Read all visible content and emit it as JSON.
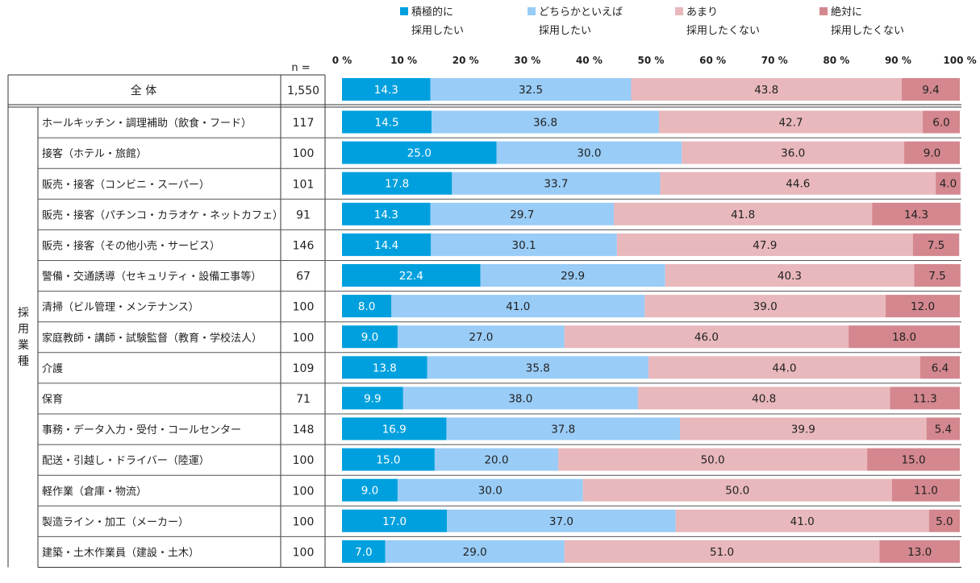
{
  "chart_data": {
    "type": "bar",
    "orientation": "horizontal",
    "stacked": true,
    "percent_stacked": true,
    "n_header": "n =",
    "xlim": [
      0,
      100
    ],
    "x_ticks": [
      "0 %",
      "10 %",
      "20 %",
      "30 %",
      "40 %",
      "50 %",
      "60 %",
      "70 %",
      "80 %",
      "90 %",
      "100 %"
    ],
    "legend": {
      "placement": "top",
      "entries": [
        {
          "line1": "積極的に",
          "line2": "採用したい"
        },
        {
          "line1": "どちらかといえば",
          "line2": "採用したい"
        },
        {
          "line1": "あまり",
          "line2": "採用したくない"
        },
        {
          "line1": "絶対に",
          "line2": "採用したくない"
        }
      ]
    },
    "colors": [
      "#00A0DE",
      "#99CCF7",
      "#E8B8BC",
      "#D4878E"
    ],
    "group_label": "採用業種",
    "total": {
      "category": "全 体",
      "n": "1,550",
      "values": [
        14.3,
        32.5,
        43.8,
        9.4
      ]
    },
    "categories": [
      "ホールキッチン・調理補助（飲食・フード）",
      "接客（ホテル・旅館）",
      "販売・接客（コンビニ・スーパー）",
      "販売・接客（パチンコ・カラオケ・ネットカフェ）",
      "販売・接客（その他小売・サービス）",
      "警備・交通誘導（セキュリティ・設備工事等）",
      "清掃（ビル管理・メンテナンス）",
      "家庭教師・講師・試験監督（教育・学校法人）",
      "介護",
      "保育",
      "事務・データ入力・受付・コールセンター",
      "配送・引越し・ドライバー（陸運）",
      "軽作業（倉庫・物流）",
      "製造ライン・加工（メーカー）",
      "建築・土木作業員（建設・土木）"
    ],
    "n": [
      "117",
      "100",
      "101",
      "91",
      "146",
      "67",
      "100",
      "100",
      "109",
      "71",
      "148",
      "100",
      "100",
      "100",
      "100"
    ],
    "series": [
      {
        "values": [
          14.5,
          25.0,
          17.8,
          14.3,
          14.4,
          22.4,
          8.0,
          9.0,
          13.8,
          9.9,
          16.9,
          15.0,
          9.0,
          17.0,
          7.0
        ]
      },
      {
        "values": [
          36.8,
          30.0,
          33.7,
          29.7,
          30.1,
          29.9,
          41.0,
          27.0,
          35.8,
          38.0,
          37.8,
          20.0,
          30.0,
          37.0,
          29.0
        ]
      },
      {
        "values": [
          42.7,
          36.0,
          44.6,
          41.8,
          47.9,
          40.3,
          39.0,
          46.0,
          44.0,
          40.8,
          39.9,
          50.0,
          50.0,
          41.0,
          51.0
        ]
      },
      {
        "values": [
          6.0,
          9.0,
          4.0,
          14.3,
          7.5,
          7.5,
          12.0,
          18.0,
          6.4,
          11.3,
          5.4,
          15.0,
          11.0,
          5.0,
          13.0
        ]
      }
    ]
  }
}
